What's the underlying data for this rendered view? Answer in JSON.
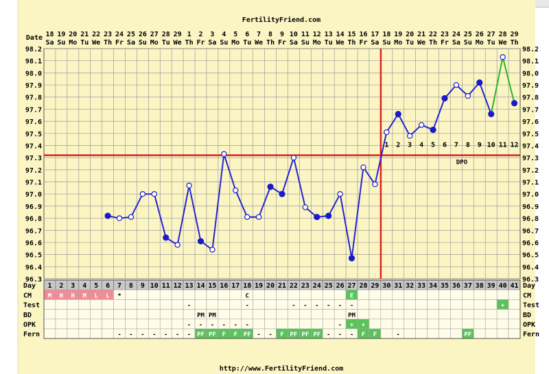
{
  "header": {
    "site": "FertilityFriend.com"
  },
  "footer": {
    "url": "http://www.FertilityFriend.com"
  },
  "colors": {
    "background": "#fbf5c4",
    "grid": "#9a9a9a",
    "line": "#2323d4",
    "line_after": "#28b428",
    "coverline": "#e02020",
    "fill_low": "#f08c96",
    "fill_green": "#5ac25a",
    "fill_gray": "#c8c8c8"
  },
  "chart_data": {
    "type": "line",
    "date_label": "Date",
    "dates": [
      "18",
      "19",
      "20",
      "21",
      "22",
      "23",
      "24",
      "25",
      "26",
      "27",
      "28",
      "29",
      "1",
      "2",
      "3",
      "4",
      "5",
      "6",
      "7",
      "8",
      "9",
      "10",
      "11",
      "12",
      "13",
      "14",
      "15",
      "16",
      "17",
      "18",
      "19",
      "20",
      "21",
      "22",
      "23",
      "24",
      "25",
      "26",
      "27",
      "28",
      "29"
    ],
    "weekdays": [
      "Sa",
      "Su",
      "Mo",
      "Tu",
      "We",
      "Th",
      "Fr",
      "Sa",
      "Su",
      "Mo",
      "Tu",
      "We",
      "Th",
      "Fr",
      "Sa",
      "Su",
      "Mo",
      "Tu",
      "We",
      "Th",
      "Fr",
      "Sa",
      "Su",
      "Mo",
      "Tu",
      "We",
      "Th",
      "Fr",
      "Sa",
      "Su",
      "Mo",
      "Tu",
      "We",
      "Th",
      "Fr",
      "Sa",
      "Su",
      "Mo",
      "Tu",
      "We",
      "Th"
    ],
    "day_label": "Day",
    "days": [
      1,
      2,
      3,
      4,
      5,
      6,
      7,
      8,
      9,
      10,
      11,
      12,
      13,
      14,
      15,
      16,
      17,
      18,
      19,
      20,
      21,
      22,
      23,
      24,
      25,
      26,
      27,
      28,
      29,
      30,
      31,
      32,
      33,
      34,
      35,
      36,
      37,
      38,
      39,
      40,
      41
    ],
    "ylim": [
      96.3,
      98.2
    ],
    "y_ticks": [
      "96.3",
      "96.4",
      "96.5",
      "96.6",
      "96.7",
      "96.8",
      "96.9",
      "97.0",
      "97.1",
      "97.2",
      "97.3",
      "97.4",
      "97.5",
      "97.6",
      "97.7",
      "97.8",
      "97.9",
      "98.0",
      "98.1",
      "98.2"
    ],
    "temperatures": [
      null,
      null,
      null,
      null,
      null,
      96.82,
      96.8,
      96.81,
      97.0,
      97.0,
      96.64,
      96.58,
      97.07,
      96.61,
      96.54,
      97.33,
      97.03,
      96.81,
      96.81,
      97.06,
      97.0,
      97.3,
      96.89,
      96.81,
      96.82,
      97.0,
      96.47,
      97.22,
      97.08,
      97.51,
      97.66,
      97.48,
      97.57,
      97.53,
      97.79,
      97.9,
      97.81,
      97.92,
      97.66,
      98.13,
      97.75
    ],
    "open_points": [
      7,
      8,
      9,
      10,
      12,
      13,
      15,
      16,
      17,
      18,
      19,
      22,
      23,
      26,
      28,
      29,
      30,
      32,
      33,
      36,
      37,
      40
    ],
    "green_from_day": 39,
    "coverline": 97.32,
    "ovulation_day": 29,
    "dpo_numbers": [
      "1",
      "2",
      "3",
      "4",
      "5",
      "6",
      "7",
      "8",
      "9",
      "10",
      "11",
      "12"
    ],
    "dpo_label": "DPO",
    "rows": [
      {
        "label": "CM",
        "cells": {
          "1": "M",
          "2": "H",
          "3": "H",
          "4": "M",
          "5": "L",
          "6": "L",
          "7": "*",
          "18": "C",
          "27": "E"
        },
        "fills": {
          "1": "low",
          "2": "low",
          "3": "low",
          "4": "low",
          "5": "low",
          "6": "low",
          "27": "green"
        }
      },
      {
        "label": "Test",
        "cells": {
          "13": "-",
          "18": "-",
          "22": "-",
          "23": "-",
          "24": "-",
          "25": "-",
          "26": "-",
          "27": "-",
          "40": "+"
        },
        "fills": {
          "40": "green"
        }
      },
      {
        "label": "BD",
        "cells": {
          "14": "PM",
          "15": "PM",
          "27": "PM"
        },
        "fills": {}
      },
      {
        "label": "OPK",
        "cells": {
          "13": "-",
          "14": "-",
          "15": "-",
          "16": "-",
          "17": "-",
          "18": "-",
          "26": "-",
          "27": "+",
          "28": "+"
        },
        "fills": {
          "27": "green",
          "28": "green"
        }
      },
      {
        "label": "Fern",
        "cells": {
          "7": "-",
          "8": "-",
          "9": "-",
          "10": "-",
          "11": "-",
          "12": "-",
          "13": "-",
          "14": "PF",
          "15": "PF",
          "16": "F",
          "17": "F",
          "18": "PF",
          "19": "-",
          "20": "-",
          "21": "F",
          "22": "PF",
          "23": "PF",
          "24": "PF",
          "25": "-",
          "26": "-",
          "27": "-",
          "28": "F",
          "29": "F",
          "31": "-",
          "37": "PF"
        },
        "fills": {
          "14": "green",
          "15": "green",
          "16": "green",
          "17": "green",
          "18": "green",
          "21": "green",
          "22": "green",
          "23": "green",
          "24": "green",
          "28": "green",
          "29": "green",
          "37": "green"
        }
      }
    ]
  }
}
